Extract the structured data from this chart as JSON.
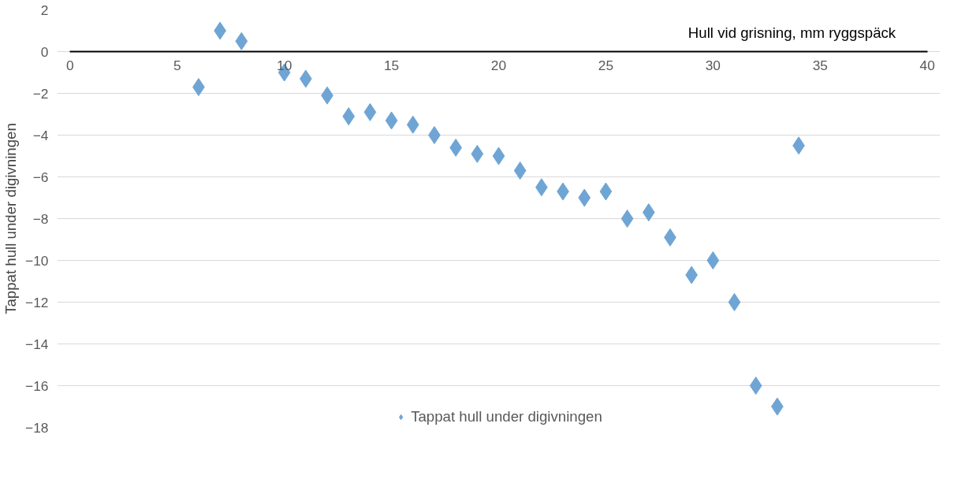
{
  "chart_data": {
    "type": "scatter",
    "xlabel": "Hull vid grisning, mm ryggspäck",
    "ylabel": "Tappat hull under digivningen",
    "x": [
      6,
      7,
      8,
      10,
      11,
      12,
      13,
      14,
      15,
      16,
      17,
      18,
      19,
      20,
      21,
      22,
      23,
      24,
      25,
      26,
      27,
      28,
      29,
      30,
      31,
      32,
      33,
      34
    ],
    "series": [
      {
        "name": "Tappat hull under digivningen",
        "color": "#6fa5d4",
        "values": [
          -1.7,
          1.0,
          0.5,
          -1.0,
          -1.3,
          -2.1,
          -3.1,
          -2.9,
          -3.3,
          -3.5,
          -4.0,
          -4.6,
          -4.9,
          -5.0,
          -5.7,
          -6.5,
          -6.7,
          -7.0,
          -6.7,
          -8.0,
          -7.7,
          -8.9,
          -10.7,
          -10.0,
          -12.0,
          -16.0,
          -17.0,
          -4.5
        ]
      }
    ],
    "xlim": [
      0,
      40
    ],
    "xticks": [
      0,
      5,
      10,
      15,
      20,
      25,
      30,
      35,
      40
    ],
    "ylim": [
      -18,
      2
    ],
    "yticks": [
      -18,
      -16,
      -14,
      -12,
      -10,
      -8,
      -6,
      -4,
      -2,
      0,
      2
    ],
    "grid": "y",
    "legend": "bottom",
    "marker": "diamond"
  }
}
